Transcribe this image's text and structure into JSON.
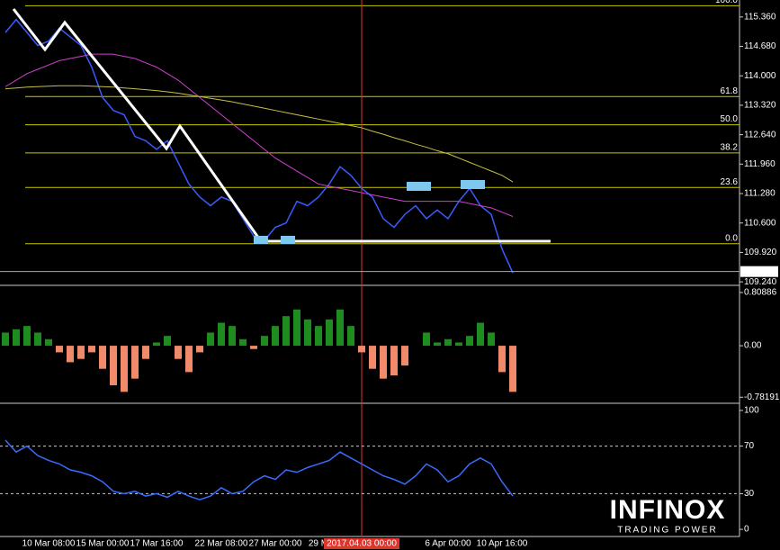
{
  "chart_data": [
    {
      "type": "line",
      "categories": [
        null,
        null,
        null,
        null,
        "10 Mar 08:00",
        null,
        null,
        null,
        null,
        "15 Mar 00:00",
        null,
        null,
        null,
        null,
        "17 Mar 16:00",
        null,
        null,
        null,
        null,
        null,
        "22 Mar 08:00",
        null,
        null,
        null,
        null,
        "27 Mar 00:00",
        null,
        null,
        null,
        "29 M",
        null,
        null,
        null,
        "2017.04.03 00:00",
        null,
        null,
        null,
        null,
        null,
        null,
        null,
        "6 Apr 00:00",
        null,
        null,
        null,
        null,
        "10 Apr 16:00",
        null
      ],
      "cursor": "2017.04.03 00:00",
      "cursor_color": "#e0332a",
      "series": [
        {
          "color": "#3a5bff",
          "values": [
            115.0,
            115.3,
            115.0,
            114.7,
            114.8,
            115.1,
            114.9,
            114.7,
            114.2,
            113.5,
            113.2,
            113.1,
            112.6,
            112.5,
            112.3,
            112.5,
            112.0,
            111.5,
            111.2,
            111.0,
            111.2,
            111.1,
            110.7,
            110.3,
            110.2,
            110.5,
            110.6,
            111.1,
            111.0,
            111.2,
            111.5,
            111.9,
            111.7,
            111.4,
            111.2,
            110.7,
            110.5,
            110.8,
            111.0,
            110.7,
            110.9,
            110.7,
            111.1,
            111.4,
            111.0,
            110.8,
            110.0,
            109.45
          ]
        },
        {
          "color": "#d040d0",
          "values": [
            113.75,
            113.9,
            114.05,
            114.15,
            114.25,
            114.35,
            114.4,
            114.45,
            114.5,
            114.5,
            114.5,
            114.45,
            114.4,
            114.3,
            114.2,
            114.05,
            113.9,
            113.7,
            113.5,
            113.3,
            113.1,
            112.9,
            112.7,
            112.5,
            112.3,
            112.1,
            111.95,
            111.8,
            111.65,
            111.5,
            111.45,
            111.4,
            111.35,
            111.3,
            111.25,
            111.2,
            111.15,
            111.1,
            111.1,
            111.1,
            111.1,
            111.1,
            111.1,
            111.05,
            111.0,
            110.95,
            110.85,
            110.75
          ]
        },
        {
          "color": "#c8c040",
          "values": [
            113.7,
            113.72,
            113.74,
            113.75,
            113.76,
            113.77,
            113.77,
            113.77,
            113.76,
            113.75,
            113.74,
            113.72,
            113.7,
            113.68,
            113.66,
            113.63,
            113.6,
            113.56,
            113.52,
            113.48,
            113.44,
            113.4,
            113.35,
            113.3,
            113.25,
            113.2,
            113.15,
            113.1,
            113.05,
            113.0,
            112.95,
            112.9,
            112.85,
            112.8,
            112.72,
            112.65,
            112.57,
            112.5,
            112.42,
            112.35,
            112.27,
            112.2,
            112.1,
            112.0,
            111.9,
            111.8,
            111.7,
            111.55
          ]
        }
      ],
      "ylim": [
        109.18,
        115.71
      ],
      "yticks": [
        {
          "value": 115.36,
          "label": "115.360"
        },
        {
          "value": 114.68,
          "label": "114.680"
        },
        {
          "value": 114.0,
          "label": "114.000"
        },
        {
          "value": 113.32,
          "label": "113.320"
        },
        {
          "value": 112.64,
          "label": "112.640"
        },
        {
          "value": 111.96,
          "label": "111.960"
        },
        {
          "value": 111.28,
          "label": "111.280"
        },
        {
          "value": 110.6,
          "label": "110.600"
        },
        {
          "value": 109.92,
          "label": "109.920"
        },
        {
          "value": 109.24,
          "label": "109.240"
        }
      ],
      "fib_color": "#c8c800",
      "fib_levels": [
        {
          "label": "100.0",
          "price": 115.62
        },
        {
          "label": "61.8",
          "price": 113.52
        },
        {
          "label": "50.0",
          "price": 112.87
        },
        {
          "label": "38.2",
          "price": 112.22
        },
        {
          "label": "23.6",
          "price": 111.42
        },
        {
          "label": "0.0",
          "price": 110.12
        }
      ],
      "last_price": 109.478
    },
    {
      "type": "histogram",
      "up_color": "#1e8c1e",
      "down_color": "#f08a6a",
      "values": [
        0.2,
        0.25,
        0.3,
        0.2,
        0.1,
        -0.1,
        -0.25,
        -0.2,
        -0.1,
        -0.35,
        -0.6,
        -0.7,
        -0.5,
        -0.2,
        0.05,
        0.15,
        -0.2,
        -0.4,
        -0.1,
        0.2,
        0.35,
        0.3,
        0.1,
        -0.05,
        0.15,
        0.3,
        0.45,
        0.55,
        0.4,
        0.3,
        0.4,
        0.55,
        0.3,
        -0.1,
        -0.35,
        -0.5,
        -0.45,
        -0.3,
        0.0,
        0.2,
        0.05,
        0.1,
        0.05,
        0.15,
        0.35,
        0.2,
        -0.4,
        -0.7
      ],
      "ylim": [
        -0.86,
        0.89
      ],
      "yticks": [
        0.80886,
        {
          "value": 0,
          "label": "0.00"
        },
        -0.78191
      ]
    },
    {
      "type": "line",
      "series": [
        {
          "color": "#3a6cff",
          "values": [
            75,
            65,
            70,
            62,
            58,
            55,
            50,
            48,
            45,
            40,
            32,
            30,
            32,
            28,
            30,
            27,
            32,
            28,
            25,
            28,
            35,
            30,
            32,
            40,
            45,
            42,
            50,
            48,
            52,
            55,
            58,
            65,
            60,
            55,
            50,
            45,
            42,
            38,
            45,
            55,
            50,
            40,
            45,
            55,
            60,
            55,
            40,
            28
          ]
        }
      ],
      "ylim": [
        -6,
        104.5
      ],
      "yticks": [
        100,
        70,
        30,
        0
      ],
      "grid": "dashed"
    }
  ],
  "watermark": {
    "name": "INFINOX",
    "tagline": "TRADING POWER"
  }
}
